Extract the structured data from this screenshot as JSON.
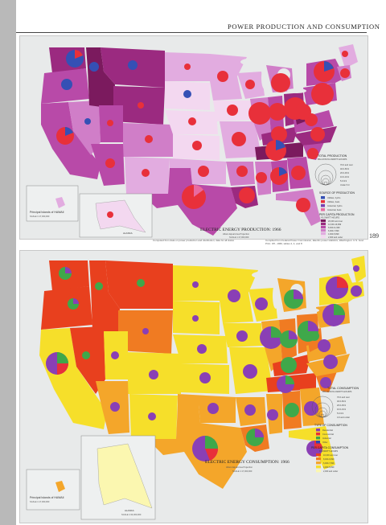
{
  "page": {
    "title": "POWER PRODUCTION AND CONSUMPTION",
    "number": "189"
  },
  "production_map": {
    "title": "ELECTRIC ENERGY PRODUCTION: 1966",
    "projection": "Albers Equal Area Projection",
    "scale": "SCALE 1:17,000,000",
    "inset_hawaii_label": "Principal Islands of HAWAII",
    "inset_hawaii_scale": "SCALE 1:17,000,000",
    "inset_alaska_label": "ALASKA",
    "inset_alaska_scale": "SCALE 1:34,000,000",
    "legend_total_title": "TOTAL PRODUCTION",
    "legend_total_sub": "BILLION KILOWATT-HOURS",
    "legend_total_items": [
      "70.0 and over",
      "40.0-69.9",
      "20.0-39.9",
      "10.0-19.9",
      "5.0-9.9",
      "Under 5.0"
    ],
    "legend_source_title": "SOURCE OF PRODUCTION",
    "legend_source_items": [
      {
        "label": "Utilities, hydro",
        "color": "#3550b5"
      },
      {
        "label": "Utilities, fuels",
        "color": "#e8303a"
      },
      {
        "label": "Industrial, hydro",
        "color": "#7a3fb0"
      },
      {
        "label": "Industrial, fuels",
        "color": "#e86aa0"
      }
    ],
    "legend_percapita_title": "PER CAPITA PRODUCTION",
    "legend_percapita_sub": "KILOWATT-HOURS",
    "legend_percapita_items": [
      {
        "label": "20,000 and over",
        "color": "#7b1a5e"
      },
      {
        "label": "12,000-19,999",
        "color": "#9b2a80"
      },
      {
        "label": "8,000-11,999",
        "color": "#b84aa8"
      },
      {
        "label": "6,000-7,999",
        "color": "#d07ec8"
      },
      {
        "label": "4,000-5,999",
        "color": "#e2ace0"
      },
      {
        "label": "2,000 and under",
        "color": "#f3d8f0"
      }
    ],
    "note_left": "Computed from data on power production and distribution; data for all states",
    "note_right": "Compiled from Federal Power Commission, Electric power statistics, Washington: U.S. Govt. Print. Off., 1966, tables 2, 4, and 8"
  },
  "consumption_map": {
    "title": "ELECTRIC ENERGY CONSUMPTION: 1966",
    "projection": "Albers Equal Area Projection",
    "scale": "SCALE 1:17,000,000",
    "inset_hawaii_label": "Principal Islands of HAWAII",
    "inset_hawaii_scale": "SCALE 1:17,000,000",
    "inset_alaska_label": "ALASKA",
    "inset_alaska_scale": "SCALE 1:34,000,000",
    "legend_total_title": "TOTAL CONSUMPTION",
    "legend_total_sub": "BILLION KILOWATT-HOURS",
    "legend_total_items": [
      "70.0 and over",
      "40.0-69.9",
      "20.0-39.9",
      "10.0-19.9",
      "5.0-9.9",
      "4.9 and under"
    ],
    "legend_type_title": "TYPE OF CONSUMPTION",
    "legend_type_items": [
      {
        "label": "Residential",
        "color": "#8a3fb5"
      },
      {
        "label": "Commercial",
        "color": "#e8303a"
      },
      {
        "label": "Industrial",
        "color": "#3fa84a"
      },
      {
        "label": "Other",
        "color": "#2a48b0"
      }
    ],
    "legend_percapita_title": "PER CAPITA CONSUMPTION",
    "legend_percapita_sub": "KILOWATT-HOURS",
    "legend_percapita_items": [
      {
        "label": "10,000 and over",
        "color": "#e8401e"
      },
      {
        "label": "8,000-9,999",
        "color": "#f07b22"
      },
      {
        "label": "6,000-7,999",
        "color": "#f4a62a"
      },
      {
        "label": "4,000-5,999",
        "color": "#f6df2a"
      },
      {
        "label": "2,000 and under",
        "color": "#fbf7b0"
      }
    ]
  }
}
